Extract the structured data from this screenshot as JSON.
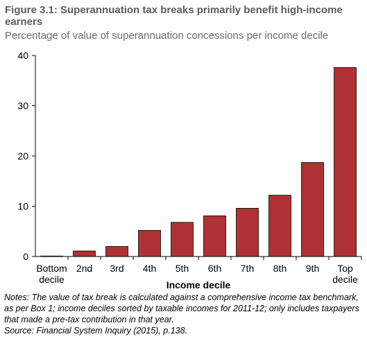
{
  "title": "Figure 3.1: Superannuation tax breaks primarily benefit high-income earners",
  "subtitle": "Percentage of value of superannuation concessions per income decile",
  "notes": "Notes: The value of tax break is calculated against a comprehensive income tax benchmark, as per Box 1; income deciles sorted by taxable incomes for 2011-12; only includes taxpayers that made a pre-tax contribution in that year.",
  "source": "Source: Financial System Inquiry (2015), p.138.",
  "colors": {
    "bar": "#b03133",
    "bar_stroke": "#000000",
    "axis": "#000000"
  },
  "chart_data": {
    "type": "bar",
    "title": "Figure 3.1: Superannuation tax breaks primarily benefit high-income earners",
    "subtitle": "Percentage of value of superannuation concessions per income decile",
    "xlabel": "Income decile",
    "ylabel": "",
    "categories": [
      [
        "Bottom",
        "decile"
      ],
      [
        "2nd"
      ],
      [
        "3rd"
      ],
      [
        "4th"
      ],
      [
        "5th"
      ],
      [
        "6th"
      ],
      [
        "7th"
      ],
      [
        "8th"
      ],
      [
        "9th"
      ],
      [
        "Top",
        "decile"
      ]
    ],
    "values": [
      0.1,
      1.1,
      2.0,
      5.2,
      6.8,
      8.1,
      9.6,
      12.2,
      18.7,
      37.6
    ],
    "ylim": [
      0,
      40
    ],
    "yticks": [
      0,
      10,
      20,
      30,
      40
    ],
    "grid": false,
    "legend": "none"
  }
}
